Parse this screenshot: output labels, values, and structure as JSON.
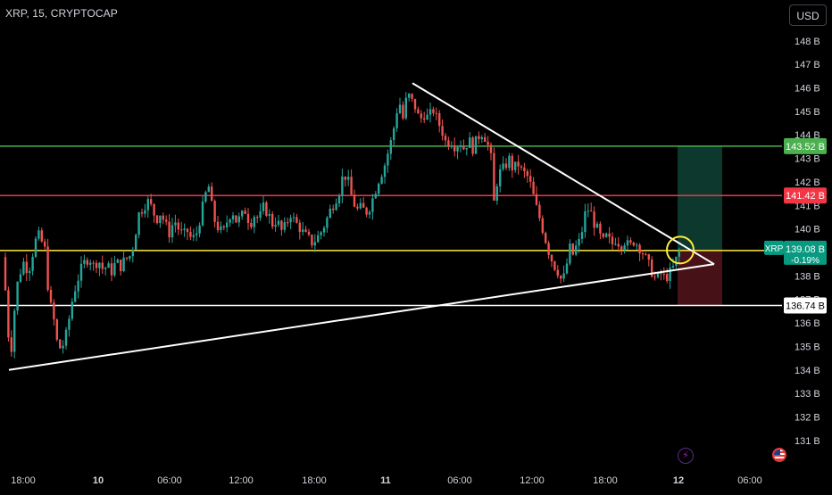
{
  "header": {
    "symbol_title": "XRP, 15, CRYPTOCAP",
    "currency_label": "USD"
  },
  "icons": {
    "bolt": "lightning-bolt-icon",
    "flag": "us-flag-icon"
  },
  "colors": {
    "background": "#000000",
    "up_candle": "#26a69a",
    "down_candle": "#ef5350",
    "axis_text": "#d1d4dc",
    "green_level": "#4caf50",
    "red_level": "#f23645",
    "yellow_level": "#ffeb3b",
    "white_level": "#ffffff",
    "xrp_label": "#089981"
  },
  "chart_data": {
    "type": "candlestick",
    "y_axis": {
      "min": 130.5,
      "max": 148.6,
      "unit": "B",
      "ticks": [
        131,
        132,
        133,
        134,
        135,
        136,
        137,
        138,
        139,
        140,
        141,
        142,
        143,
        144,
        145,
        146,
        147,
        148
      ],
      "tick_labels": [
        "131 B",
        "132 B",
        "133 B",
        "134 B",
        "135 B",
        "136 B",
        "137 B",
        "138 B",
        "139 B",
        "140 B",
        "141 B",
        "142 B",
        "143 B",
        "144 B",
        "145 B",
        "146 B",
        "147 B",
        "148 B"
      ]
    },
    "x_axis": {
      "tick_labels": [
        "18:00",
        "10",
        "06:00",
        "12:00",
        "18:00",
        "11",
        "06:00",
        "12:00",
        "18:00",
        "12",
        "06:00"
      ]
    },
    "price_path": [
      [
        0,
        139.2
      ],
      [
        4,
        138.8
      ],
      [
        8,
        136.0
      ],
      [
        12,
        134.6
      ],
      [
        16,
        136.5
      ],
      [
        20,
        137.8
      ],
      [
        26,
        138.6
      ],
      [
        32,
        138.2
      ],
      [
        38,
        139.2
      ],
      [
        42,
        139.8
      ],
      [
        46,
        139.5
      ],
      [
        50,
        139.2
      ],
      [
        55,
        137.0
      ],
      [
        60,
        136.2
      ],
      [
        65,
        134.9
      ],
      [
        70,
        135.0
      ],
      [
        75,
        135.6
      ],
      [
        80,
        136.8
      ],
      [
        85,
        137.6
      ],
      [
        90,
        138.2
      ],
      [
        95,
        138.6
      ],
      [
        100,
        138.8
      ],
      [
        105,
        138.4
      ],
      [
        110,
        138.7
      ],
      [
        115,
        138.3
      ],
      [
        120,
        138.4
      ],
      [
        125,
        138.2
      ],
      [
        130,
        138.6
      ],
      [
        135,
        138.4
      ],
      [
        140,
        138.7
      ],
      [
        145,
        138.8
      ],
      [
        150,
        139.4
      ],
      [
        155,
        140.6
      ],
      [
        160,
        140.9
      ],
      [
        165,
        141.2
      ],
      [
        170,
        140.9
      ],
      [
        175,
        140.4
      ],
      [
        180,
        140.7
      ],
      [
        185,
        140.2
      ],
      [
        190,
        139.8
      ],
      [
        195,
        140.4
      ],
      [
        200,
        140.0
      ],
      [
        205,
        139.7
      ],
      [
        210,
        139.9
      ],
      [
        215,
        139.5
      ],
      [
        220,
        139.8
      ],
      [
        225,
        140.6
      ],
      [
        230,
        141.4
      ],
      [
        233,
        142.0
      ],
      [
        236,
        141.2
      ],
      [
        240,
        140.4
      ],
      [
        245,
        140.0
      ],
      [
        250,
        139.8
      ],
      [
        255,
        140.4
      ],
      [
        260,
        140.8
      ],
      [
        265,
        140.3
      ],
      [
        270,
        140.5
      ],
      [
        275,
        140.8
      ],
      [
        280,
        140.2
      ],
      [
        285,
        140.6
      ],
      [
        290,
        140.4
      ],
      [
        295,
        140.9
      ],
      [
        300,
        140.7
      ],
      [
        305,
        140.2
      ],
      [
        310,
        140.4
      ],
      [
        315,
        139.9
      ],
      [
        320,
        140.1
      ],
      [
        325,
        140.7
      ],
      [
        330,
        140.3
      ],
      [
        335,
        140.1
      ],
      [
        340,
        139.8
      ],
      [
        345,
        139.6
      ],
      [
        350,
        139.4
      ],
      [
        355,
        139.6
      ],
      [
        360,
        139.9
      ],
      [
        365,
        140.3
      ],
      [
        370,
        140.8
      ],
      [
        375,
        141.2
      ],
      [
        380,
        141.6
      ],
      [
        385,
        142.4
      ],
      [
        390,
        142.0
      ],
      [
        395,
        141.2
      ],
      [
        400,
        140.8
      ],
      [
        405,
        140.9
      ],
      [
        410,
        140.7
      ],
      [
        415,
        141.0
      ],
      [
        420,
        141.6
      ],
      [
        425,
        142.2
      ],
      [
        430,
        142.6
      ],
      [
        435,
        143.3
      ],
      [
        440,
        144.0
      ],
      [
        444,
        145.0
      ],
      [
        448,
        145.3
      ],
      [
        452,
        144.6
      ],
      [
        456,
        145.8
      ],
      [
        460,
        145.5
      ],
      [
        465,
        145.2
      ],
      [
        470,
        144.6
      ],
      [
        475,
        144.9
      ],
      [
        480,
        144.7
      ],
      [
        485,
        145.1
      ],
      [
        490,
        144.6
      ],
      [
        495,
        144.2
      ],
      [
        500,
        143.6
      ],
      [
        505,
        143.8
      ],
      [
        510,
        143.5
      ],
      [
        515,
        143.7
      ],
      [
        520,
        143.4
      ],
      [
        525,
        143.8
      ],
      [
        530,
        143.4
      ],
      [
        535,
        143.9
      ],
      [
        540,
        144.1
      ],
      [
        545,
        143.8
      ],
      [
        550,
        143.0
      ],
      [
        553,
        141.0
      ],
      [
        556,
        141.9
      ],
      [
        560,
        142.4
      ],
      [
        565,
        142.6
      ],
      [
        570,
        143.0
      ],
      [
        575,
        142.5
      ],
      [
        580,
        142.8
      ],
      [
        585,
        142.4
      ],
      [
        590,
        142.3
      ],
      [
        595,
        141.8
      ],
      [
        600,
        141.0
      ],
      [
        605,
        140.4
      ],
      [
        610,
        139.7
      ],
      [
        615,
        139.0
      ],
      [
        620,
        138.5
      ],
      [
        625,
        138.2
      ],
      [
        630,
        137.7
      ],
      [
        634,
        138.3
      ],
      [
        638,
        139.2
      ],
      [
        642,
        138.9
      ],
      [
        646,
        139.3
      ],
      [
        650,
        139.5
      ],
      [
        655,
        140.6
      ],
      [
        660,
        140.9
      ],
      [
        665,
        140.3
      ],
      [
        670,
        139.9
      ],
      [
        675,
        139.4
      ],
      [
        680,
        139.7
      ],
      [
        685,
        139.3
      ],
      [
        690,
        139.6
      ],
      [
        695,
        139.3
      ],
      [
        700,
        139.5
      ],
      [
        705,
        139.2
      ],
      [
        710,
        139.5
      ],
      [
        715,
        139.3
      ],
      [
        720,
        139.0
      ],
      [
        725,
        138.6
      ],
      [
        730,
        138.2
      ],
      [
        735,
        137.8
      ],
      [
        740,
        138.1
      ],
      [
        745,
        137.9
      ],
      [
        750,
        138.1
      ],
      [
        755,
        138.4
      ],
      [
        760,
        139.0
      ],
      [
        764,
        139.2
      ]
    ],
    "horizontal_levels": [
      {
        "value": 143.52,
        "label": "143.52 B",
        "color": "#4caf50"
      },
      {
        "value": 141.42,
        "label": "141.42 B",
        "color": "#f23645"
      },
      {
        "value": 139.08,
        "label": "139.08 B",
        "color": "#ffeb3b"
      },
      {
        "value": 136.74,
        "label": "136.74 B",
        "color": "#ffffff"
      }
    ],
    "current_price": {
      "value": 139.08,
      "label": "139.08 B",
      "change": "-0.19%",
      "ticker": "XRP"
    },
    "trendlines": [
      {
        "from": [
          462,
          146.2
        ],
        "to": [
          800,
          138.5
        ],
        "color": "#ffffff"
      },
      {
        "from": [
          10,
          134.0
        ],
        "to": [
          800,
          138.5
        ],
        "color": "#ffffff"
      }
    ],
    "position_tool": {
      "entry": 139.08,
      "target": 143.52,
      "stop": 136.74,
      "profit_color": "#0d3b2f",
      "loss_color": "#4a1218"
    },
    "highlight_circle": {
      "x": 762,
      "y": 139.1,
      "color": "#ffeb3b"
    }
  }
}
